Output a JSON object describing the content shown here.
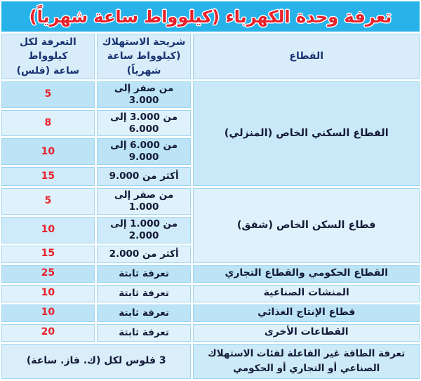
{
  "title": "تعرفة وحدة الكهرباء (كيلوواط ساعة شهرياً)",
  "colors": {
    "title_bar_bg": "#27b2e9",
    "title_text": "#e8212b",
    "header_bg": "#d8edf9",
    "header_text": "#1b3473",
    "row_dark": "#bce4f6",
    "row_light": "#dff2fb",
    "body_text": "#141a38",
    "tariff_number": "#e8212b",
    "cell_border": "#9ed5ef"
  },
  "table": {
    "headers": {
      "sector": "القطاع",
      "bracket": "شريحة الاستهلاك\n(كيلوواط ساعة شهرياً)",
      "tariff": "التعرفة لكل كيلوواط\nساعة (فلس)"
    },
    "rows": [
      {
        "sector": "القطاع السكني الخاص (المنزلي)",
        "bracket": "من صفر إلى 3.000",
        "tariff": "5"
      },
      {
        "bracket": "من 3.000 إلى 6.000",
        "tariff": "8"
      },
      {
        "bracket": "من 6.000 إلى 9.000",
        "tariff": "10"
      },
      {
        "bracket": "أكثر من 9.000",
        "tariff": "15"
      },
      {
        "sector": "قطاع السكن الخاص (شقق)",
        "bracket": "من صفر إلى 1.000",
        "tariff": "5"
      },
      {
        "bracket": "من 1.000 إلى\n2.000",
        "tariff": "10"
      },
      {
        "bracket": "أكثر من 2.000",
        "tariff": "15"
      },
      {
        "sector": "القطاع الحكومي والقطاع التجاري",
        "bracket": "تعرفة ثابتة",
        "tariff": "25"
      },
      {
        "sector": "المنشات الصناعية",
        "bracket": "تعرفة ثابتة",
        "tariff": "10"
      },
      {
        "sector": "قطاع الإنتاج الغذائي",
        "bracket": "تعرفة ثابتة",
        "tariff": "10"
      },
      {
        "sector": "القطاعات الأخرى",
        "bracket": "تعرفة ثابتة",
        "tariff": "20"
      }
    ],
    "footer": {
      "label": "تعرفة الطاقة غير الفاعلة لفئات الاستهلاك الصناعي أو التجاري أو الحكومي",
      "value": "3 فلوس لكل (ك. فاز. ساعة)"
    }
  }
}
